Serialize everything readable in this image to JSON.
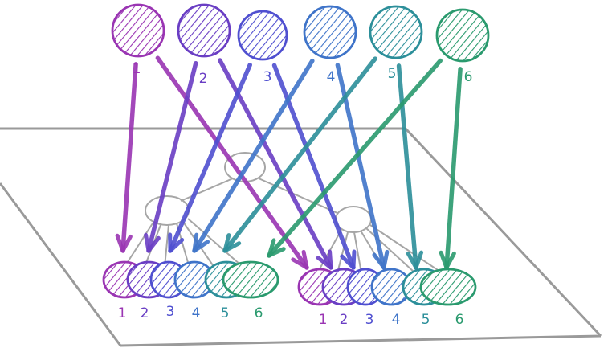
{
  "diagram": {
    "top_nodes": [
      {
        "label": "1",
        "color": "#9a35b3"
      },
      {
        "label": "2",
        "color": "#6a3ec4"
      },
      {
        "label": "3",
        "color": "#4f4fd0"
      },
      {
        "label": "4",
        "color": "#3f74c9"
      },
      {
        "label": "5",
        "color": "#2c8f9a"
      },
      {
        "label": "6",
        "color": "#2a9a6e"
      }
    ],
    "bottom_groups": [
      {
        "labels": [
          "1",
          "2",
          "3",
          "4",
          "5",
          "6"
        ]
      },
      {
        "labels": [
          "1",
          "2",
          "3",
          "4",
          "5",
          "6"
        ]
      }
    ]
  }
}
